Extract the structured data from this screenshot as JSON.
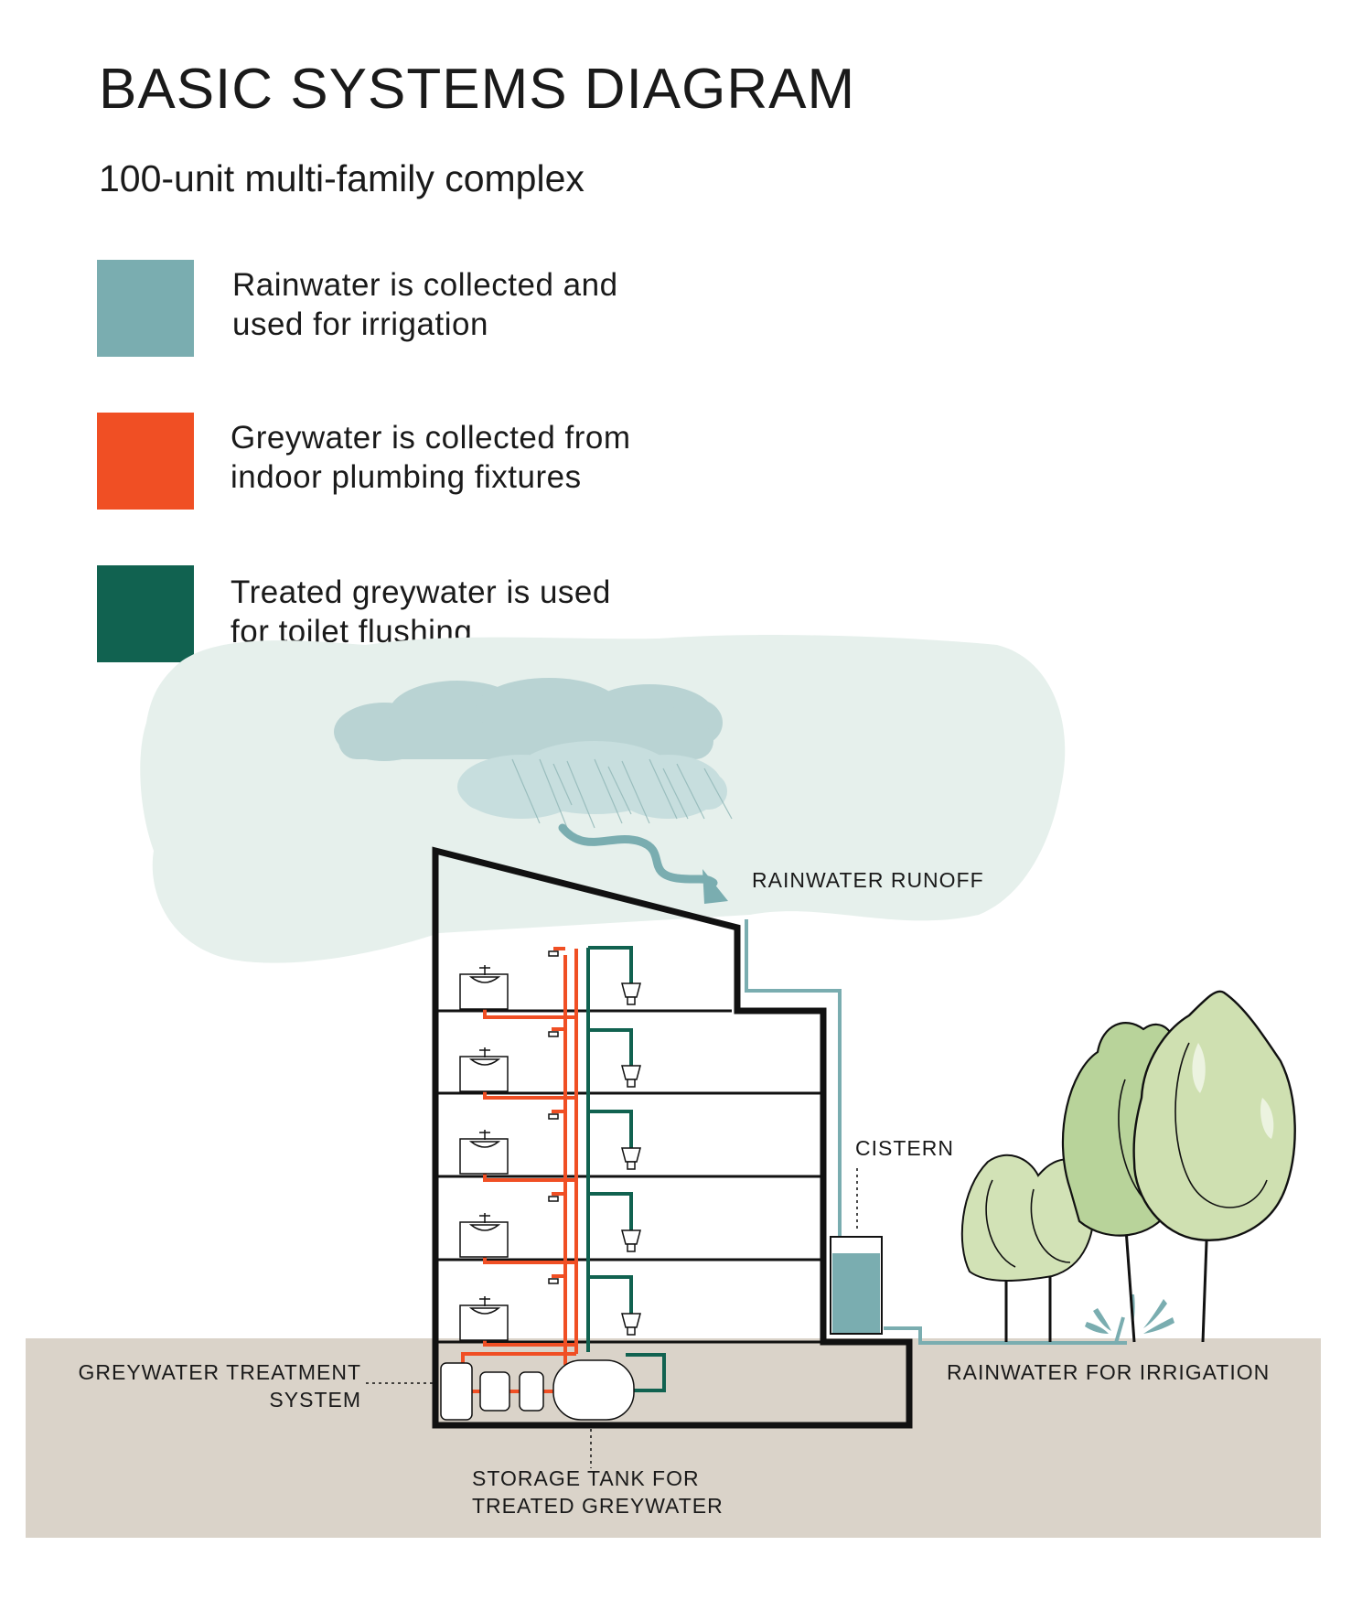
{
  "title": "BASIC SYSTEMS DIAGRAM",
  "subtitle": "100-unit multi-family complex",
  "colors": {
    "rainwater": "#7aadb0",
    "greywater": "#f04f24",
    "treated": "#116250",
    "ground": "#dad3c9",
    "cloud_bg": "#e6f0ec"
  },
  "legend": [
    {
      "line1": "Rainwater is collected and",
      "line2": "used for irrigation"
    },
    {
      "line1": "Greywater is collected from",
      "line2": "indoor plumbing fixtures"
    },
    {
      "line1": "Treated greywater is used",
      "line2": "for toilet flushing"
    }
  ],
  "labels": {
    "rainwater_runoff": "RAINWATER RUNOFF",
    "cistern": "CISTERN",
    "rainwater_irrigation": "RAINWATER FOR IRRIGATION",
    "treatment_line1": "GREYWATER TREATMENT",
    "treatment_line2": "SYSTEM",
    "storage_line1": "STORAGE TANK FOR",
    "storage_line2": "TREATED GREYWATER"
  }
}
